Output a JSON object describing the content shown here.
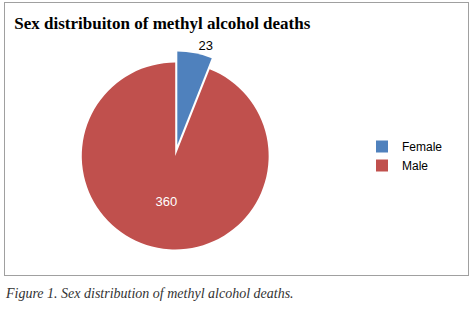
{
  "chart_data": {
    "type": "pie",
    "title": "Sex distribuiton of methyl alcohol deaths",
    "categories": [
      "Female",
      "Male"
    ],
    "values": [
      23,
      360
    ],
    "colors": [
      "#4f81bd",
      "#c0504d"
    ],
    "data_labels": true,
    "legend": "right",
    "caption": "Figure 1. Sex distribution of methyl alcohol deaths."
  }
}
